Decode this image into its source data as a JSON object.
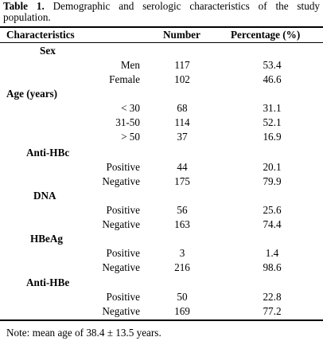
{
  "table": {
    "caption_label": "Table 1.",
    "caption_text": "Demographic and serologic characteristics of the study population.",
    "columns": [
      "Characteristics",
      "Number",
      "Percentage (%)"
    ],
    "groups": [
      {
        "label": "Sex",
        "rows": [
          {
            "label": "Men",
            "number": "117",
            "percentage": "53.4"
          },
          {
            "label": "Female",
            "number": "102",
            "percentage": "46.6"
          }
        ]
      },
      {
        "label": "Age (years)",
        "rows": [
          {
            "label": "< 30",
            "number": "68",
            "percentage": "31.1"
          },
          {
            "label": "31-50",
            "number": "114",
            "percentage": "52.1"
          },
          {
            "label": "> 50",
            "number": "37",
            "percentage": "16.9"
          }
        ]
      },
      {
        "label": "Anti-HBc",
        "rows": [
          {
            "label": "Positive",
            "number": "44",
            "percentage": "20.1"
          },
          {
            "label": "Negative",
            "number": "175",
            "percentage": "79.9"
          }
        ]
      },
      {
        "label": "DNA",
        "rows": [
          {
            "label": "Positive",
            "number": "56",
            "percentage": "25.6"
          },
          {
            "label": "Negative",
            "number": "163",
            "percentage": "74.4"
          }
        ]
      },
      {
        "label": "HBeAg",
        "rows": [
          {
            "label": "Positive",
            "number": "3",
            "percentage": "1.4"
          },
          {
            "label": "Negative",
            "number": "216",
            "percentage": "98.6"
          }
        ]
      },
      {
        "label": "Anti-HBe",
        "rows": [
          {
            "label": "Positive",
            "number": "50",
            "percentage": "22.8"
          },
          {
            "label": "Negative",
            "number": "169",
            "percentage": "77.2"
          }
        ]
      }
    ],
    "note": "Note: mean age of 38.4 ± 13.5 years."
  }
}
